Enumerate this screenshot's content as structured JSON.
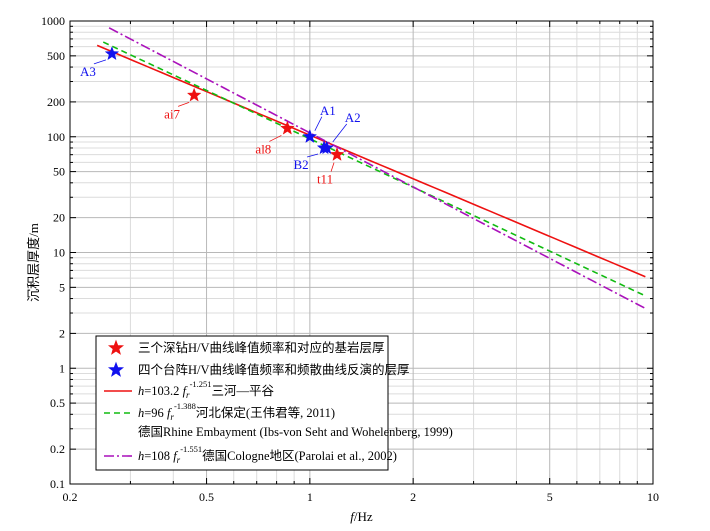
{
  "chart_data": {
    "type": "scatter",
    "x_scale": "log",
    "y_scale": "log",
    "xlim": [
      0.2,
      10
    ],
    "ylim": [
      0.1,
      1000
    ],
    "grid": true,
    "xlabel": "f/Hz",
    "ylabel": "沉积层厚度/m",
    "x_ticks": [
      "0.2",
      "0.5",
      "1",
      "2",
      "5",
      "10"
    ],
    "y_ticks": [
      "0.1",
      "0.2",
      "0.5",
      "1",
      "2",
      "5",
      "10",
      "20",
      "50",
      "100",
      "200",
      "500",
      "1000"
    ],
    "x_tick_values": [
      0.2,
      0.5,
      1,
      2,
      5,
      10
    ],
    "y_tick_values": [
      0.1,
      0.2,
      0.5,
      1,
      2,
      5,
      10,
      20,
      50,
      100,
      200,
      500,
      1000
    ],
    "series": [
      {
        "name": "三个深钻H/V曲线峰值频率和对应的基岩层厚",
        "kind": "points",
        "color": "#ee1111",
        "points": [
          {
            "label": "ai7",
            "x": 0.46,
            "y": 228
          },
          {
            "label": "al8",
            "x": 0.86,
            "y": 118
          },
          {
            "label": "t11",
            "x": 1.2,
            "y": 70
          }
        ]
      },
      {
        "name": "四个台阵H/V曲线峰值频率和频散曲线反演的层厚",
        "kind": "points",
        "color": "#1111ee",
        "points": [
          {
            "label": "A3",
            "x": 0.265,
            "y": 520
          },
          {
            "label": "A1",
            "x": 1.0,
            "y": 100
          },
          {
            "label": "A2",
            "x": 1.12,
            "y": 80
          },
          {
            "label": "B2",
            "x": 1.1,
            "y": 80
          }
        ]
      },
      {
        "name_prefix": "h",
        "name_eq": "=103.2 ",
        "name_f": "f",
        "name_sub": "r",
        "name_sup": "-1.251",
        "name_suffix": "三河—平谷",
        "kind": "curve",
        "a": 103.2,
        "b": -1.251,
        "x_range": [
          0.24,
          9.5
        ],
        "color": "#ee1111",
        "dash": ""
      },
      {
        "name_prefix": "h",
        "name_eq": "=96 ",
        "name_f": "f",
        "name_sub": "r",
        "name_sup": "-1.388",
        "name_suffix": "河北保定(王伟君等, 2011)",
        "name_line2": "德国Rhine Embayment (Ibs-von Seht and Wohelenberg, 1999)",
        "kind": "curve",
        "a": 96,
        "b": -1.388,
        "x_range": [
          0.25,
          9.5
        ],
        "color": "#11bb11",
        "dash": "6,4"
      },
      {
        "name_prefix": "h",
        "name_eq": "=108 ",
        "name_f": "f",
        "name_sub": "r",
        "name_sup": "-1.551",
        "name_suffix": "德国Cologne地区(Parolai et al., 2002)",
        "kind": "curve",
        "a": 108,
        "b": -1.551,
        "x_range": [
          0.26,
          9.5
        ],
        "color": "#aa11bb",
        "dash": "10,3,2,3"
      }
    ]
  }
}
